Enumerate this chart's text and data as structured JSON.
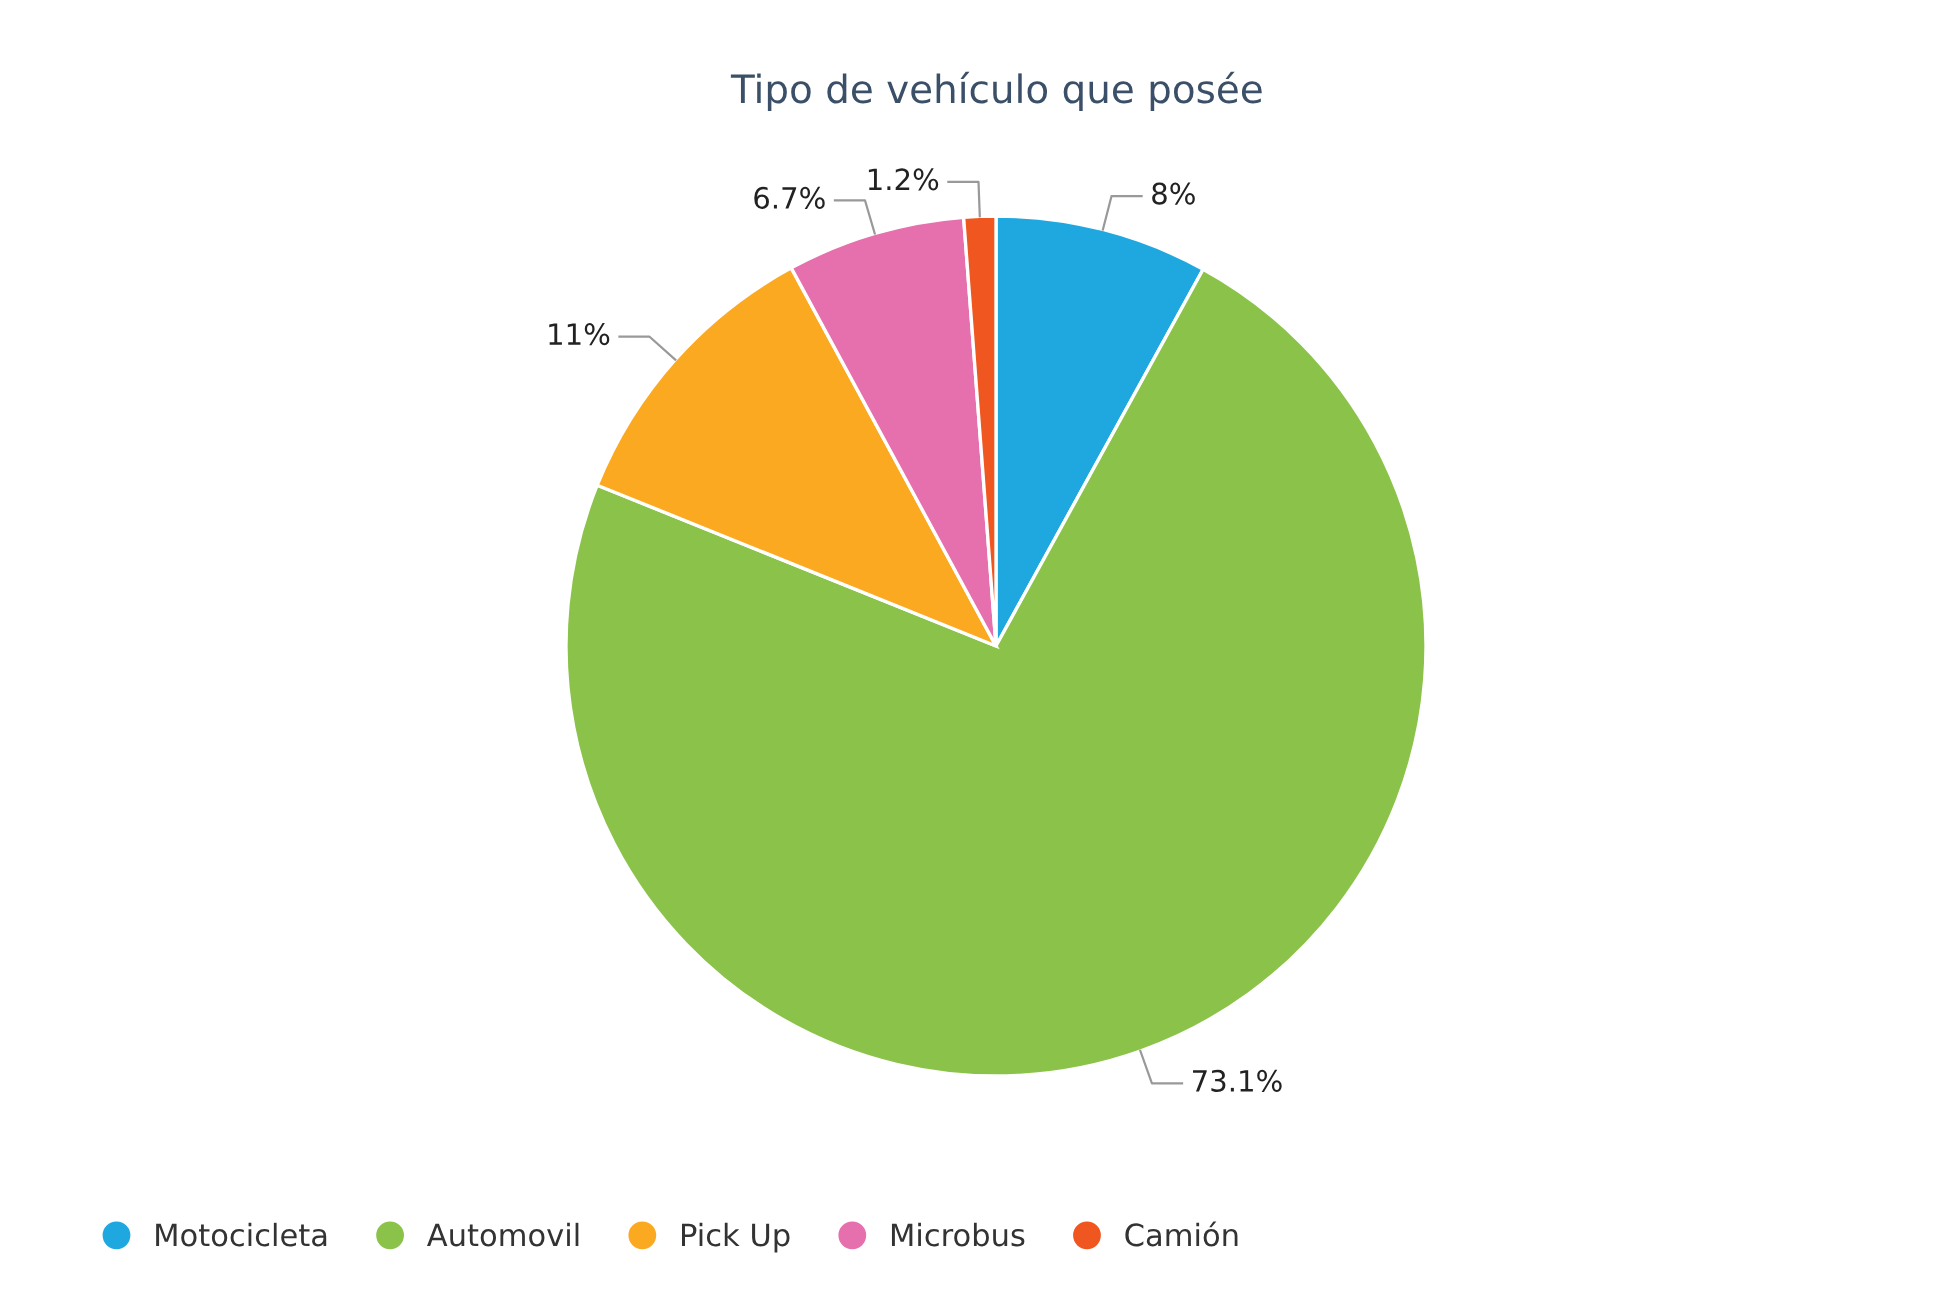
{
  "chart_data": {
    "type": "pie",
    "title": "Tipo de vehículo que posée",
    "categories": [
      "Motocicleta",
      "Automovil",
      "Pick Up",
      "Microbus",
      "Camión"
    ],
    "values": [
      8,
      73.1,
      11,
      6.7,
      1.2
    ],
    "colors": [
      "#1fa8e0",
      "#8bc34a",
      "#fca922",
      "#e66fae",
      "#f0561f"
    ],
    "value_labels": [
      "8%",
      "73.1%",
      "11%",
      "6.7%",
      "1.2%"
    ],
    "legend": "bottom left"
  }
}
